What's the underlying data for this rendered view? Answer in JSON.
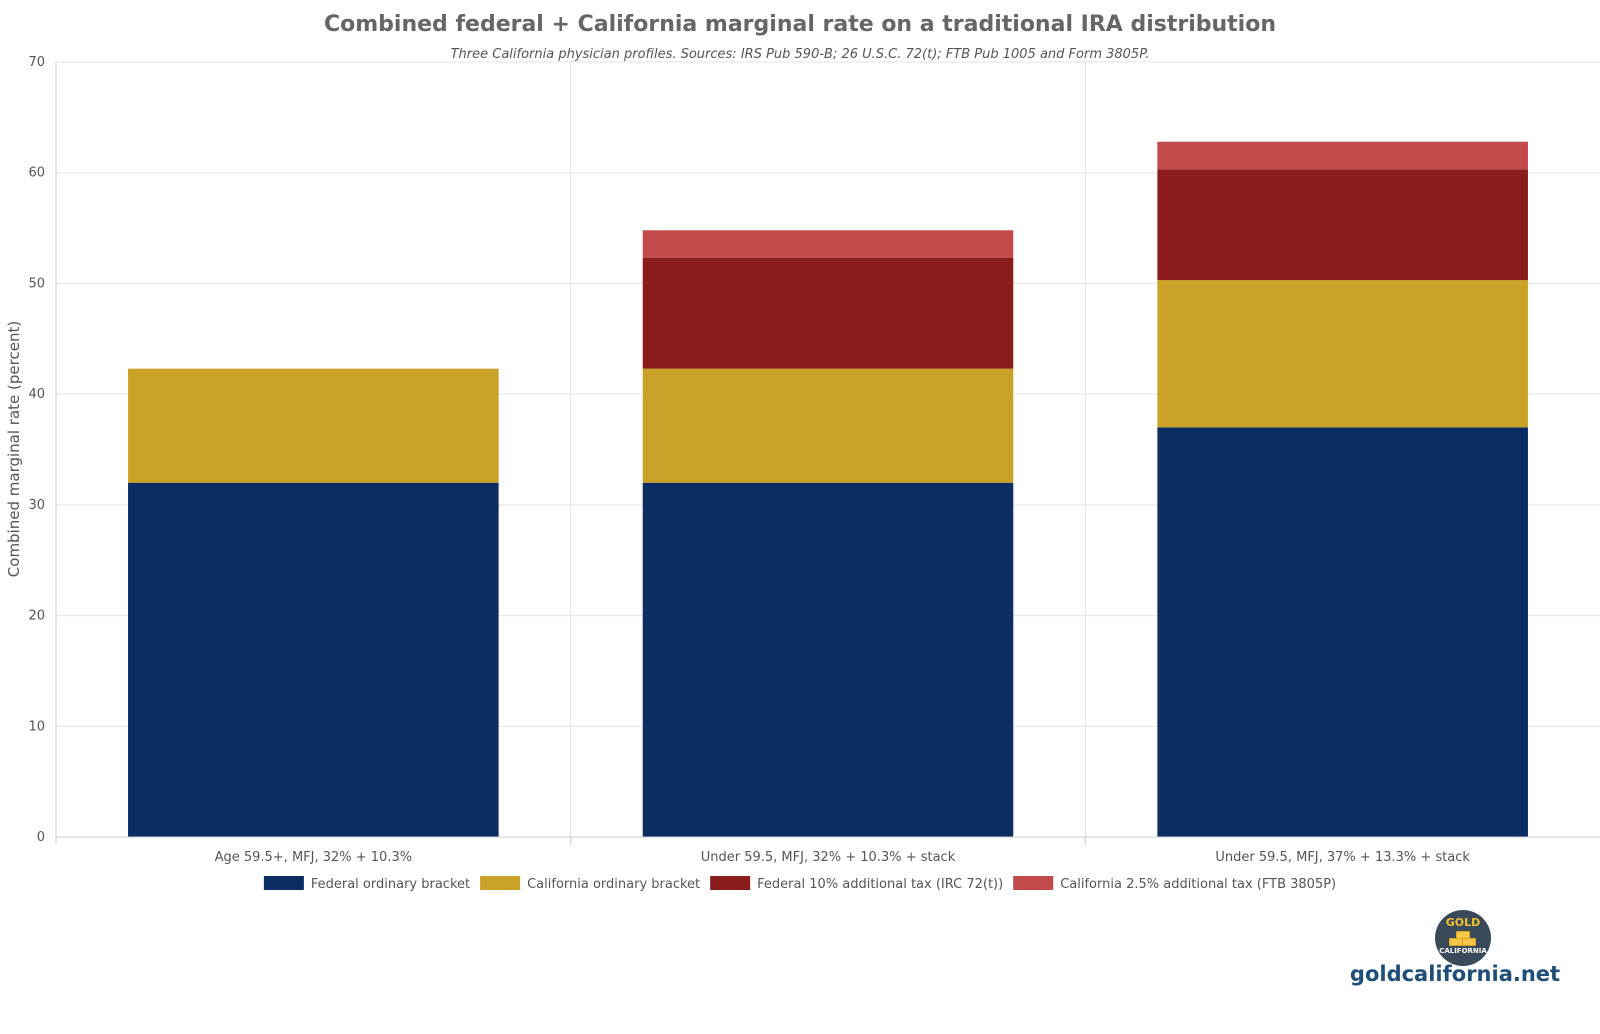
{
  "chart_data": {
    "type": "bar",
    "stacked": true,
    "title": "Combined federal + California marginal rate on a traditional IRA distribution",
    "subtitle": "Three California physician profiles. Sources: IRS Pub 590-B; 26 U.S.C. 72(t); FTB Pub 1005 and Form 3805P.",
    "xlabel": "",
    "ylabel": "Combined marginal rate (percent)",
    "ylim": [
      0,
      70
    ],
    "yticks": [
      0,
      10,
      20,
      30,
      40,
      50,
      60,
      70
    ],
    "grid": true,
    "legend_position": "bottom",
    "categories": [
      "Age 59.5+, MFJ, 32% + 10.3%",
      "Under 59.5, MFJ, 32% + 10.3% + stack",
      "Under 59.5, MFJ, 37% + 13.3% + stack"
    ],
    "series": [
      {
        "name": "Federal ordinary bracket",
        "color": "#0c2d62",
        "values": [
          32,
          32,
          37
        ]
      },
      {
        "name": "California ordinary bracket",
        "color": "#c9a227",
        "values": [
          10.3,
          10.3,
          13.3
        ]
      },
      {
        "name": "Federal 10% additional tax (IRC 72(t))",
        "color": "#8b1c1c",
        "values": [
          0,
          10,
          10
        ]
      },
      {
        "name": "California 2.5% additional tax (FTB 3805P)",
        "color": "#c24a4a",
        "values": [
          0,
          2.5,
          2.5
        ]
      }
    ]
  },
  "brand": {
    "logo_top": "GOLD",
    "logo_bottom": "CALIFORNIA",
    "url": "goldcalifornia.net"
  }
}
